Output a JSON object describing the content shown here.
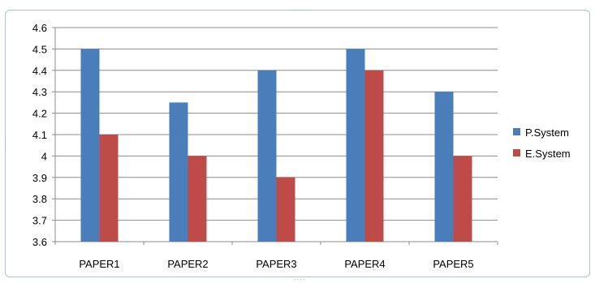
{
  "chart_data": {
    "type": "bar",
    "title": "",
    "xlabel": "",
    "ylabel": "",
    "categories": [
      "PAPER1",
      "PAPER2",
      "PAPER3",
      "PAPER4",
      "PAPER5"
    ],
    "series": [
      {
        "name": "P.System",
        "color": "#4a7ebb",
        "values": [
          4.5,
          4.25,
          4.4,
          4.5,
          4.3
        ]
      },
      {
        "name": "E.System",
        "color": "#be4b48",
        "values": [
          4.1,
          4.0,
          3.9,
          4.4,
          4.0
        ]
      }
    ],
    "ylim": [
      3.6,
      4.6
    ],
    "yticks": [
      "3.6",
      "3.7",
      "3.8",
      "3.9",
      "4",
      "4.1",
      "4.2",
      "4.3",
      "4.4",
      "4.5",
      "4.6"
    ],
    "grid": true,
    "legend_position": "right"
  }
}
